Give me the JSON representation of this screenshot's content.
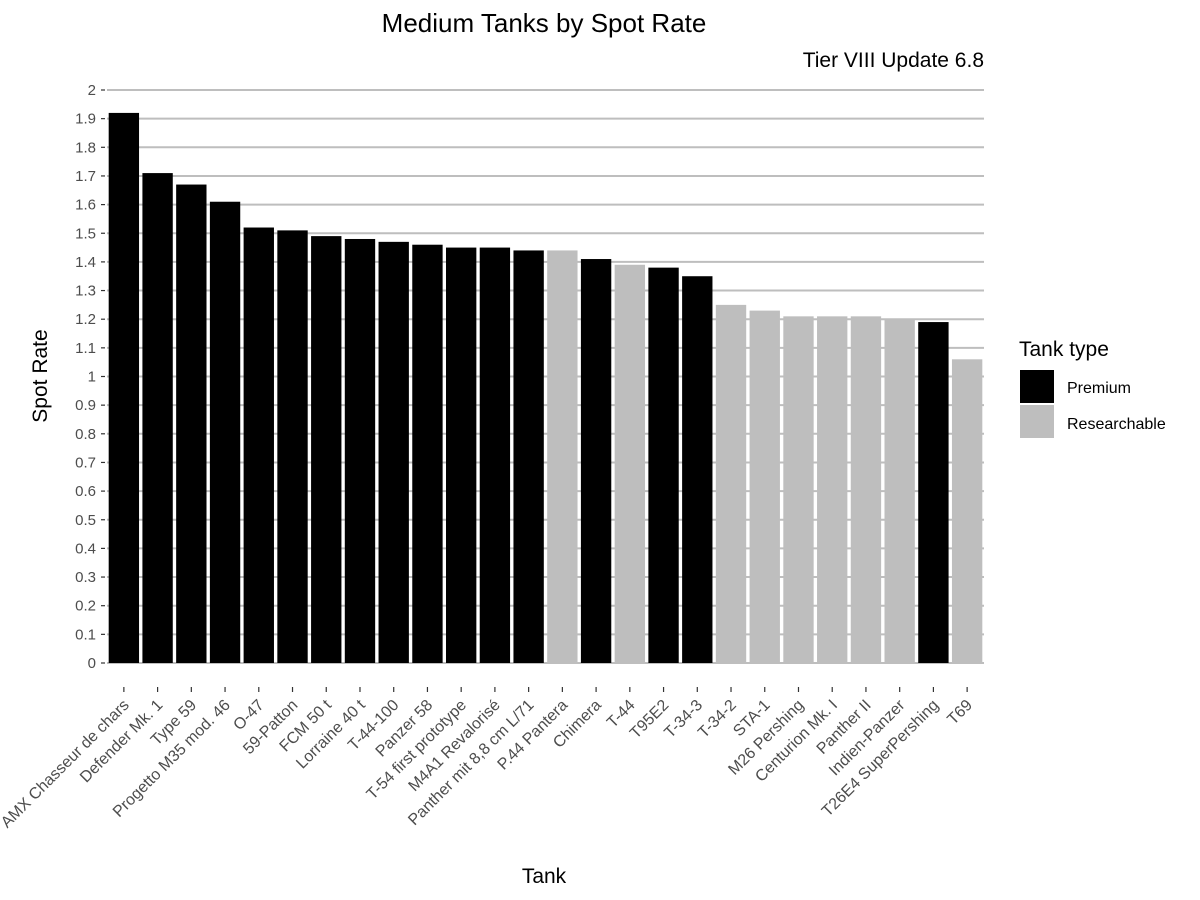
{
  "chart_data": {
    "type": "bar",
    "title": "Medium Tanks by Spot Rate",
    "subtitle": "Tier VIII Update 6.8",
    "xlabel": "Tank",
    "ylabel": "Spot Rate",
    "ylim": [
      0,
      2
    ],
    "yticks": [
      "0",
      "0.1",
      "0.2",
      "0.3",
      "0.4",
      "0.5",
      "0.6",
      "0.7",
      "0.8",
      "0.9",
      "1",
      "1.1",
      "1.2",
      "1.3",
      "1.4",
      "1.5",
      "1.6",
      "1.7",
      "1.8",
      "1.9",
      "2"
    ],
    "grid": true,
    "legend": {
      "title": "Tank type",
      "position": "right",
      "items": [
        {
          "label": "Premium",
          "color": "#000000"
        },
        {
          "label": "Researchable",
          "color": "#bebebe"
        }
      ]
    },
    "colors": {
      "Premium": "#000000",
      "Researchable": "#bebebe"
    },
    "categories": [
      "AMX Chasseur de chars",
      "Defender Mk. 1",
      "Type 59",
      "Progetto M35 mod. 46",
      "O-47",
      "59-Patton",
      "FCM 50 t",
      "Lorraine 40 t",
      "T-44-100",
      "Panzer 58",
      "T-54 first prototype",
      "M4A1 Revalorisé",
      "Panther mit 8,8 cm L/71",
      "P.44 Pantera",
      "Chimera",
      "T-44",
      "T95E2",
      "T-34-3",
      "T-34-2",
      "STA-1",
      "M26 Pershing",
      "Centurion Mk. I",
      "Panther II",
      "Indien-Panzer",
      "T26E4 SuperPershing",
      "T69"
    ],
    "values": [
      1.92,
      1.71,
      1.67,
      1.61,
      1.52,
      1.51,
      1.49,
      1.48,
      1.47,
      1.46,
      1.45,
      1.45,
      1.44,
      1.44,
      1.41,
      1.39,
      1.38,
      1.35,
      1.25,
      1.23,
      1.21,
      1.21,
      1.21,
      1.2,
      1.19,
      1.06
    ],
    "types": [
      "Premium",
      "Premium",
      "Premium",
      "Premium",
      "Premium",
      "Premium",
      "Premium",
      "Premium",
      "Premium",
      "Premium",
      "Premium",
      "Premium",
      "Premium",
      "Researchable",
      "Premium",
      "Researchable",
      "Premium",
      "Premium",
      "Researchable",
      "Researchable",
      "Researchable",
      "Researchable",
      "Researchable",
      "Researchable",
      "Premium",
      "Researchable"
    ]
  }
}
